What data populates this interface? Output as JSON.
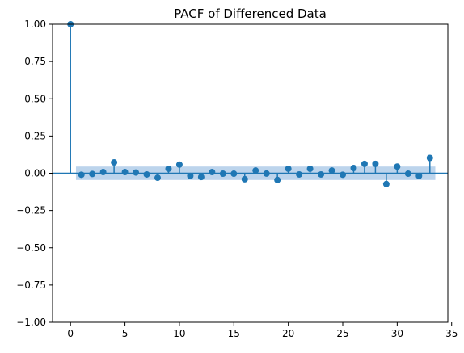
{
  "chart_data": {
    "type": "stem",
    "title": "PACF of Differenced Data",
    "xlabel": "",
    "ylabel": "",
    "xlim": [
      -1.65,
      34.65
    ],
    "ylim": [
      -1.0,
      1.0
    ],
    "x_ticks": [
      0,
      5,
      10,
      15,
      20,
      25,
      30,
      35
    ],
    "y_ticks": [
      -1.0,
      -0.75,
      -0.5,
      -0.25,
      0.0,
      0.25,
      0.5,
      0.75,
      1.0
    ],
    "x_tick_labels": [
      "0",
      "5",
      "10",
      "15",
      "20",
      "25",
      "30",
      "35"
    ],
    "y_tick_labels": [
      "−1.00",
      "−0.75",
      "−0.50",
      "−0.25",
      "0.00",
      "0.25",
      "0.50",
      "0.75",
      "1.00"
    ],
    "grid": false,
    "legend": "none",
    "lags": [
      0,
      1,
      2,
      3,
      4,
      5,
      6,
      7,
      8,
      9,
      10,
      11,
      12,
      13,
      14,
      15,
      16,
      17,
      18,
      19,
      20,
      21,
      22,
      23,
      24,
      25,
      26,
      27,
      28,
      29,
      30,
      31,
      32,
      33
    ],
    "values": [
      1.0,
      -0.01,
      -0.005,
      0.008,
      0.073,
      0.008,
      0.005,
      -0.008,
      -0.03,
      0.03,
      0.058,
      -0.018,
      -0.025,
      0.008,
      -0.003,
      -0.003,
      -0.04,
      0.018,
      -0.002,
      -0.045,
      0.03,
      -0.008,
      0.03,
      -0.008,
      0.018,
      -0.01,
      0.035,
      0.063,
      0.063,
      -0.072,
      0.045,
      -0.003,
      -0.018,
      0.103
    ],
    "confidence_band": {
      "x": [
        0.5,
        33.5
      ],
      "upper": 0.045,
      "lower": -0.045
    },
    "colors": {
      "series": "#1f77b4",
      "band": "#a6c5e5",
      "baseline": "#1f77b4",
      "axis": "#000000"
    }
  }
}
